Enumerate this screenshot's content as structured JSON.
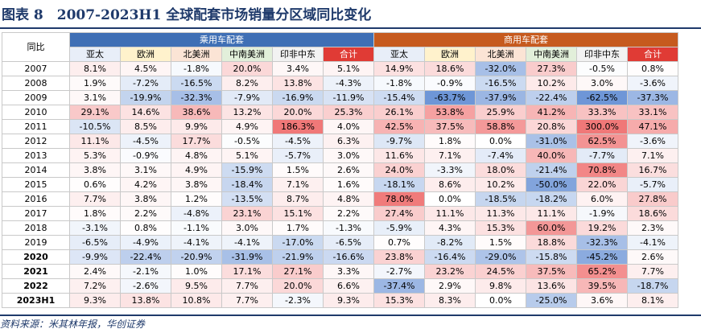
{
  "title": "图表 8　2007-2023H1 全球配套市场销量分区域同比变化",
  "corner_label": "同比",
  "groups": [
    {
      "label": "乘用车配套",
      "color": "#3f6fb5"
    },
    {
      "label": "商用车配套",
      "color": "#c65a1e"
    }
  ],
  "colors": {
    "header_asia": "#e8eef8",
    "header_europe": "#fff2cc",
    "header_na": "#fbe4d5",
    "header_latam": "#e2efda",
    "header_africa": "#f2f2f2",
    "header_total": "#e03b35",
    "year_col": "#ffffff"
  },
  "column_headers": [
    "亚太",
    "欧洲",
    "北美洲",
    "中南美洲",
    "印非中东",
    "合计",
    "亚太",
    "欧洲",
    "北美洲",
    "中南美洲",
    "印非中东",
    "合计"
  ],
  "rows": [
    {
      "year": "2007",
      "bold": false,
      "values": [
        "8.1%",
        "4.5%",
        "-1.8%",
        "20.0%",
        "3.4%",
        "5.1%",
        "14.9%",
        "18.6%",
        "-32.0%",
        "27.3%",
        "-0.5%",
        "0.8%"
      ]
    },
    {
      "year": "2008",
      "bold": false,
      "values": [
        "1.9%",
        "-7.2%",
        "-16.5%",
        "8.2%",
        "13.8%",
        "-4.3%",
        "-1.8%",
        "-0.9%",
        "-16.5%",
        "10.2%",
        "3.0%",
        "-3.6%"
      ]
    },
    {
      "year": "2009",
      "bold": false,
      "values": [
        "3.1%",
        "-19.9%",
        "-32.3%",
        "-7.9%",
        "-16.9%",
        "-11.9%",
        "-15.4%",
        "-63.7%",
        "-37.9%",
        "-22.4%",
        "-62.5%",
        "-37.3%"
      ]
    },
    {
      "year": "2010",
      "bold": false,
      "values": [
        "29.1%",
        "14.6%",
        "38.6%",
        "13.2%",
        "20.0%",
        "25.3%",
        "26.1%",
        "53.8%",
        "25.9%",
        "41.2%",
        "33.3%",
        "33.1%"
      ]
    },
    {
      "year": "2011",
      "bold": false,
      "values": [
        "-10.5%",
        "8.5%",
        "9.9%",
        "4.9%",
        "186.3%",
        "4.0%",
        "42.5%",
        "37.5%",
        "58.8%",
        "20.8%",
        "300.0%",
        "47.1%"
      ]
    },
    {
      "year": "2012",
      "bold": false,
      "values": [
        "11.1%",
        "-4.5%",
        "17.7%",
        "-0.5%",
        "-4.5%",
        "6.3%",
        "-9.7%",
        "1.8%",
        "0.0%",
        "-31.0%",
        "62.5%",
        "-3.6%"
      ]
    },
    {
      "year": "2013",
      "bold": false,
      "values": [
        "5.3%",
        "-0.9%",
        "4.8%",
        "5.1%",
        "-5.7%",
        "3.0%",
        "11.6%",
        "7.1%",
        "-7.4%",
        "40.0%",
        "-7.7%",
        "7.1%"
      ]
    },
    {
      "year": "2014",
      "bold": false,
      "values": [
        "3.8%",
        "3.1%",
        "4.9%",
        "-15.9%",
        "1.5%",
        "2.6%",
        "24.0%",
        "-3.3%",
        "18.0%",
        "-21.4%",
        "70.8%",
        "16.7%"
      ]
    },
    {
      "year": "2015",
      "bold": false,
      "values": [
        "0.6%",
        "4.2%",
        "3.8%",
        "-18.4%",
        "7.1%",
        "1.6%",
        "-18.1%",
        "8.6%",
        "10.2%",
        "-50.0%",
        "22.0%",
        "-5.7%"
      ]
    },
    {
      "year": "2016",
      "bold": false,
      "values": [
        "7.7%",
        "3.8%",
        "1.2%",
        "-13.5%",
        "8.7%",
        "4.8%",
        "78.0%",
        "0.0%",
        "-18.5%",
        "-18.2%",
        "6.0%",
        "27.8%"
      ]
    },
    {
      "year": "2017",
      "bold": false,
      "values": [
        "1.8%",
        "2.2%",
        "-4.8%",
        "23.1%",
        "15.1%",
        "2.2%",
        "27.4%",
        "11.1%",
        "11.3%",
        "11.1%",
        "-1.9%",
        "18.6%"
      ]
    },
    {
      "year": "2018",
      "bold": false,
      "values": [
        "-3.1%",
        "0.8%",
        "-1.1%",
        "3.0%",
        "1.7%",
        "-1.3%",
        "-5.9%",
        "4.3%",
        "15.3%",
        "60.0%",
        "19.2%",
        "2.3%"
      ]
    },
    {
      "year": "2019",
      "bold": false,
      "values": [
        "-6.5%",
        "-4.9%",
        "-4.1%",
        "-4.1%",
        "-17.0%",
        "-6.5%",
        "0.7%",
        "-8.2%",
        "1.5%",
        "18.8%",
        "-32.3%",
        "-4.1%"
      ]
    },
    {
      "year": "2020",
      "bold": true,
      "values": [
        "-9.9%",
        "-22.4%",
        "-20.9%",
        "-31.9%",
        "-21.9%",
        "-16.6%",
        "23.8%",
        "-16.4%",
        "-29.0%",
        "-15.8%",
        "-45.2%",
        "2.6%"
      ]
    },
    {
      "year": "2021",
      "bold": true,
      "values": [
        "2.4%",
        "-2.1%",
        "1.0%",
        "17.1%",
        "27.1%",
        "3.3%",
        "-2.7%",
        "23.2%",
        "24.5%",
        "37.5%",
        "65.2%",
        "7.7%"
      ]
    },
    {
      "year": "2022",
      "bold": true,
      "values": [
        "7.2%",
        "-2.6%",
        "9.5%",
        "7.7%",
        "20.0%",
        "6.6%",
        "-37.4%",
        "2.9%",
        "9.8%",
        "13.6%",
        "39.5%",
        "-18.7%"
      ]
    },
    {
      "year": "2023H1",
      "bold": true,
      "values": [
        "9.3%",
        "13.8%",
        "10.8%",
        "7.7%",
        "-2.3%",
        "9.3%",
        "15.3%",
        "8.3%",
        "0.0%",
        "-25.0%",
        "3.6%",
        "8.1%"
      ]
    }
  ],
  "source": "资料来源：米其林年报，华创证券"
}
